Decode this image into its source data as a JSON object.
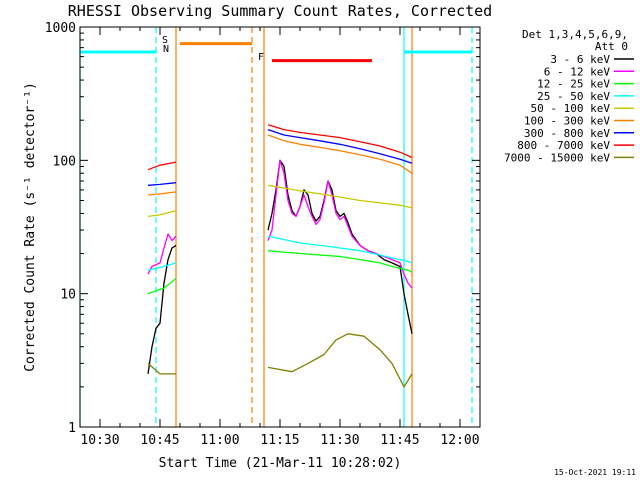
{
  "chart_data": {
    "type": "line",
    "title": "RHESSI Observing Summary Count Rates, Corrected",
    "xlabel": "Start Time (21-Mar-11 10:28:02)",
    "ylabel": "Corrected Count Rate (s⁻¹ detector⁻¹)",
    "y_scale": "log",
    "ylim": [
      1,
      1000
    ],
    "xlim": [
      "10:25",
      "12:05"
    ],
    "x_ticks": [
      "10:30",
      "10:45",
      "11:00",
      "11:15",
      "11:30",
      "11:45",
      "12:00"
    ],
    "y_ticks": [
      "1",
      "10",
      "100",
      "1000"
    ],
    "legend_position": "right",
    "legend_header": [
      "Det 1,3,4,5,6,9,",
      "Att 0"
    ],
    "footer": "15-Oct-2021 19:11",
    "colors": {
      "axis": "#000000",
      "background": "#ffffff"
    },
    "series": [
      {
        "name": "3 - 6 keV",
        "color": "#000000",
        "points": [
          [
            "10:42",
            2.5
          ],
          [
            "10:43",
            4
          ],
          [
            "10:44",
            5.5
          ],
          [
            "10:45",
            6
          ],
          [
            "10:46",
            12
          ],
          [
            "10:47",
            18
          ],
          [
            "10:48",
            22
          ],
          [
            "10:49",
            23
          ],
          [
            "11:12",
            30
          ],
          [
            "11:13",
            40
          ],
          [
            "11:14",
            60
          ],
          [
            "11:15",
            100
          ],
          [
            "11:16",
            90
          ],
          [
            "11:17",
            55
          ],
          [
            "11:18",
            42
          ],
          [
            "11:19",
            38
          ],
          [
            "11:20",
            45
          ],
          [
            "11:21",
            60
          ],
          [
            "11:22",
            55
          ],
          [
            "11:23",
            40
          ],
          [
            "11:24",
            35
          ],
          [
            "11:25",
            38
          ],
          [
            "11:26",
            50
          ],
          [
            "11:27",
            70
          ],
          [
            "11:28",
            60
          ],
          [
            "11:29",
            42
          ],
          [
            "11:30",
            38
          ],
          [
            "11:31",
            40
          ],
          [
            "11:32",
            34
          ],
          [
            "11:33",
            28
          ],
          [
            "11:35",
            23
          ],
          [
            "11:37",
            21
          ],
          [
            "11:39",
            20
          ],
          [
            "11:41",
            18
          ],
          [
            "11:43",
            17
          ],
          [
            "11:45",
            16
          ],
          [
            "11:46",
            10
          ],
          [
            "11:47",
            7
          ],
          [
            "11:48",
            5
          ]
        ]
      },
      {
        "name": "6 - 12 keV",
        "color": "#ff00ff",
        "points": [
          [
            "10:42",
            14
          ],
          [
            "10:43",
            16
          ],
          [
            "10:45",
            17
          ],
          [
            "10:46",
            22
          ],
          [
            "10:47",
            28
          ],
          [
            "10:48",
            25
          ],
          [
            "10:49",
            27
          ],
          [
            "11:12",
            25
          ],
          [
            "11:13",
            30
          ],
          [
            "11:14",
            55
          ],
          [
            "11:15",
            100
          ],
          [
            "11:16",
            80
          ],
          [
            "11:17",
            50
          ],
          [
            "11:18",
            40
          ],
          [
            "11:19",
            38
          ],
          [
            "11:20",
            45
          ],
          [
            "11:21",
            55
          ],
          [
            "11:22",
            45
          ],
          [
            "11:23",
            38
          ],
          [
            "11:24",
            33
          ],
          [
            "11:25",
            36
          ],
          [
            "11:26",
            48
          ],
          [
            "11:27",
            70
          ],
          [
            "11:28",
            55
          ],
          [
            "11:29",
            40
          ],
          [
            "11:30",
            36
          ],
          [
            "11:31",
            38
          ],
          [
            "11:32",
            32
          ],
          [
            "11:33",
            27
          ],
          [
            "11:35",
            23
          ],
          [
            "11:37",
            21
          ],
          [
            "11:39",
            20
          ],
          [
            "11:41",
            19
          ],
          [
            "11:43",
            18
          ],
          [
            "11:45",
            17
          ],
          [
            "11:46",
            14
          ],
          [
            "11:47",
            12
          ],
          [
            "11:48",
            11
          ]
        ]
      },
      {
        "name": "12 - 25 keV",
        "color": "#00ff00",
        "points": [
          [
            "10:42",
            10
          ],
          [
            "10:44",
            10.5
          ],
          [
            "10:46",
            11
          ],
          [
            "10:49",
            13
          ],
          [
            "11:12",
            21
          ],
          [
            "11:16",
            20.5
          ],
          [
            "11:20",
            20
          ],
          [
            "11:25",
            19.5
          ],
          [
            "11:30",
            19
          ],
          [
            "11:35",
            18
          ],
          [
            "11:40",
            17
          ],
          [
            "11:43",
            16
          ],
          [
            "11:45",
            15.5
          ],
          [
            "11:47",
            15
          ],
          [
            "11:48",
            14.5
          ]
        ]
      },
      {
        "name": "25 - 50 keV",
        "color": "#00ffff",
        "points": [
          [
            "10:42",
            15
          ],
          [
            "10:44",
            15.5
          ],
          [
            "10:46",
            16
          ],
          [
            "10:49",
            17
          ],
          [
            "11:12",
            27
          ],
          [
            "11:16",
            25.5
          ],
          [
            "11:20",
            24
          ],
          [
            "11:25",
            23
          ],
          [
            "11:30",
            22
          ],
          [
            "11:35",
            21
          ],
          [
            "11:40",
            19.5
          ],
          [
            "11:43",
            18.5
          ],
          [
            "11:45",
            18
          ],
          [
            "11:47",
            17.5
          ],
          [
            "11:48",
            17
          ]
        ]
      },
      {
        "name": "50 - 100 keV",
        "color": "#c8c800",
        "points": [
          [
            "10:42",
            38
          ],
          [
            "10:45",
            39
          ],
          [
            "10:49",
            42
          ],
          [
            "11:12",
            65
          ],
          [
            "11:16",
            62
          ],
          [
            "11:20",
            59
          ],
          [
            "11:25",
            56
          ],
          [
            "11:30",
            53
          ],
          [
            "11:35",
            50
          ],
          [
            "11:40",
            48
          ],
          [
            "11:45",
            46
          ],
          [
            "11:48",
            44
          ]
        ]
      },
      {
        "name": "100 - 300 keV",
        "color": "#ff8000",
        "points": [
          [
            "10:42",
            55
          ],
          [
            "10:45",
            56
          ],
          [
            "10:49",
            58
          ],
          [
            "11:12",
            155
          ],
          [
            "11:16",
            140
          ],
          [
            "11:20",
            132
          ],
          [
            "11:25",
            125
          ],
          [
            "11:30",
            118
          ],
          [
            "11:35",
            110
          ],
          [
            "11:40",
            102
          ],
          [
            "11:45",
            92
          ],
          [
            "11:48",
            80
          ]
        ]
      },
      {
        "name": "300 - 800 keV",
        "color": "#0000ff",
        "points": [
          [
            "10:42",
            65
          ],
          [
            "10:45",
            66
          ],
          [
            "10:49",
            68
          ],
          [
            "11:12",
            170
          ],
          [
            "11:16",
            155
          ],
          [
            "11:20",
            148
          ],
          [
            "11:25",
            140
          ],
          [
            "11:30",
            132
          ],
          [
            "11:35",
            122
          ],
          [
            "11:40",
            112
          ],
          [
            "11:45",
            102
          ],
          [
            "11:48",
            95
          ]
        ]
      },
      {
        "name": "800 - 7000 keV",
        "color": "#ff0000",
        "points": [
          [
            "10:42",
            85
          ],
          [
            "10:45",
            92
          ],
          [
            "10:49",
            97
          ],
          [
            "11:12",
            185
          ],
          [
            "11:16",
            170
          ],
          [
            "11:20",
            162
          ],
          [
            "11:25",
            155
          ],
          [
            "11:30",
            148
          ],
          [
            "11:35",
            138
          ],
          [
            "11:40",
            128
          ],
          [
            "11:45",
            115
          ],
          [
            "11:48",
            105
          ]
        ]
      },
      {
        "name": "7000 - 15000 keV",
        "color": "#808000",
        "points": [
          [
            "10:42",
            3
          ],
          [
            "10:45",
            2.5
          ],
          [
            "10:49",
            2.5
          ],
          [
            "11:12",
            2.8
          ],
          [
            "11:18",
            2.6
          ],
          [
            "11:22",
            3
          ],
          [
            "11:26",
            3.5
          ],
          [
            "11:29",
            4.5
          ],
          [
            "11:32",
            5
          ],
          [
            "11:36",
            4.8
          ],
          [
            "11:40",
            3.8
          ],
          [
            "11:43",
            3
          ],
          [
            "11:46",
            2
          ],
          [
            "11:48",
            2.5
          ]
        ]
      }
    ],
    "flags": {
      "saa": {
        "label": "S",
        "color": "#ff8000",
        "x": "10:45"
      },
      "night": {
        "label": "N",
        "color": "#00ffff",
        "x": "10:45"
      },
      "flare": {
        "label": "F",
        "color": "#ff0000",
        "x": "11:10"
      },
      "night_bars": {
        "color": "#00ffff",
        "ranges": [
          [
            "10:25",
            "10:44"
          ],
          [
            "11:46",
            "12:03"
          ]
        ],
        "y": 650
      },
      "saa_bar": {
        "color": "#ff8000",
        "range": [
          "10:50",
          "11:08"
        ],
        "y": 750
      },
      "flare_bar": {
        "color": "#ff0000",
        "range": [
          "11:13",
          "11:38"
        ],
        "y": 560
      }
    },
    "vertical_lines": [
      {
        "x": "10:25",
        "color": "#00ffff",
        "style": "solid"
      },
      {
        "x": "10:44",
        "color": "#00ffff",
        "style": "dashed"
      },
      {
        "x": "10:49",
        "color": "#ff8000",
        "style": "solid"
      },
      {
        "x": "11:08",
        "color": "#ff8000",
        "style": "dashed"
      },
      {
        "x": "11:11",
        "color": "#ff8000",
        "style": "solid"
      },
      {
        "x": "11:46",
        "color": "#00ffff",
        "style": "solid"
      },
      {
        "x": "11:48",
        "color": "#ff8000",
        "style": "solid"
      },
      {
        "x": "12:03",
        "color": "#00ffff",
        "style": "dashed"
      }
    ]
  }
}
